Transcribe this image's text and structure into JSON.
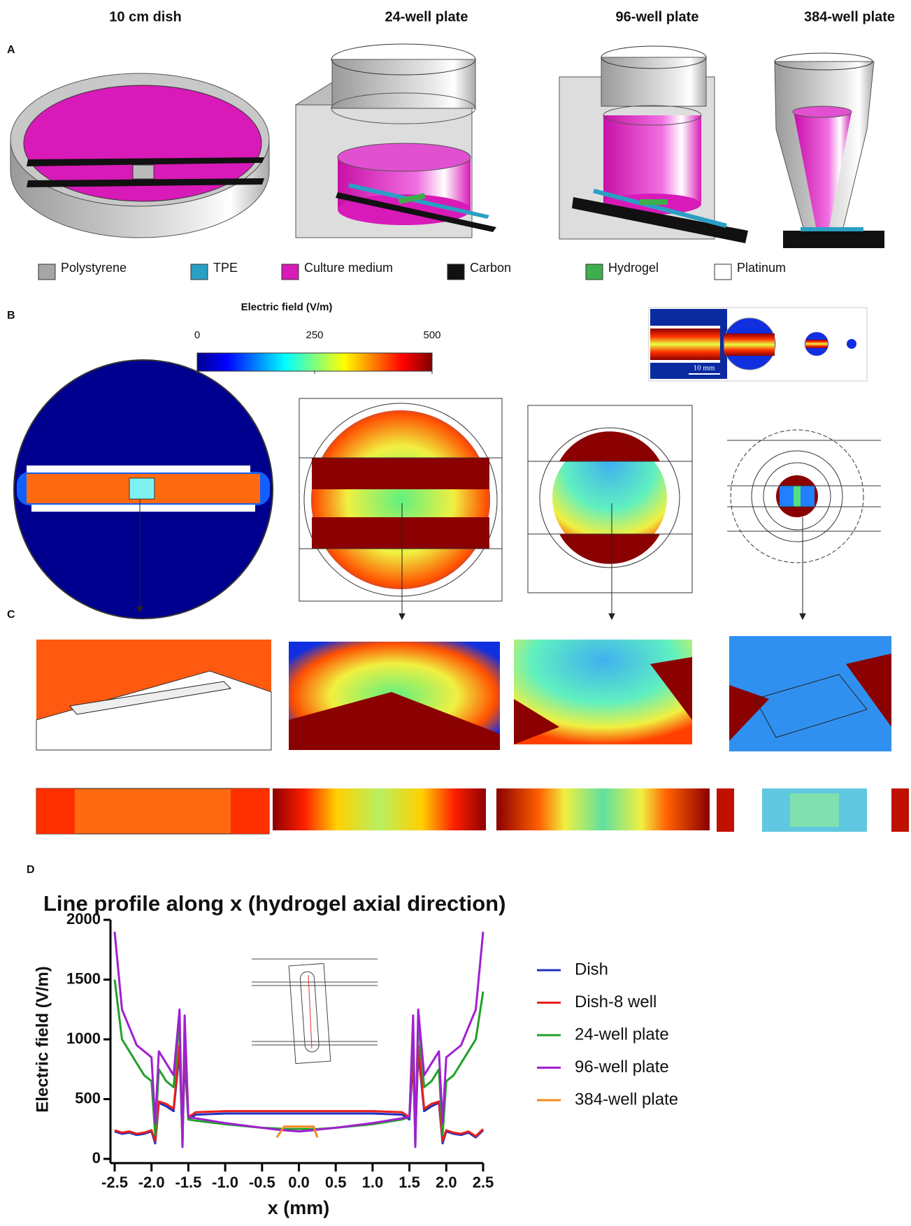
{
  "columns": [
    "10 cm dish",
    "24-well plate",
    "96-well plate",
    "384-well plate"
  ],
  "panel_labels": {
    "A": "A",
    "B": "B",
    "C": "C",
    "D": "D"
  },
  "materials": [
    {
      "name": "Polystyrene",
      "color": "#a6a6a6"
    },
    {
      "name": "TPE",
      "color": "#2a9fc4"
    },
    {
      "name": "Culture medium",
      "color": "#d81ab8"
    },
    {
      "name": "Carbon",
      "color": "#111111"
    },
    {
      "name": "Hydrogel",
      "color": "#3fae4c"
    },
    {
      "name": "Platinum",
      "color": "#ffffff"
    }
  ],
  "colorbar": {
    "label": "Electric field (V/m)",
    "lim": [
      0,
      500
    ],
    "ticks": [
      0,
      250,
      500
    ]
  },
  "inset_scale": "10 mm",
  "chart_data": {
    "type": "line",
    "title": "Line profile along x (hydrogel axial direction)",
    "x_label": "x (mm)",
    "y_label": "Electric field (V/m)",
    "x": [
      -2.5,
      -2.4,
      -2.3,
      -2.2,
      -2.1,
      -2.0,
      -1.95,
      -1.9,
      -1.8,
      -1.7,
      -1.62,
      -1.58,
      -1.55,
      -1.5,
      -1.4,
      -1.0,
      -0.5,
      -0.3,
      -0.2,
      0,
      0.2,
      0.25,
      0.5,
      1.0,
      1.4,
      1.5,
      1.55,
      1.58,
      1.62,
      1.7,
      1.8,
      1.9,
      1.95,
      2.0,
      2.1,
      2.2,
      2.3,
      2.4,
      2.5
    ],
    "series": [
      {
        "name": "Dish",
        "color": "#1f2fc0",
        "values": [
          230,
          210,
          220,
          200,
          210,
          230,
          130,
          470,
          440,
          400,
          900,
          150,
          850,
          330,
          370,
          380,
          380,
          380,
          380,
          380,
          380,
          380,
          380,
          380,
          370,
          330,
          850,
          150,
          900,
          400,
          440,
          470,
          130,
          230,
          210,
          200,
          220,
          180,
          240
        ]
      },
      {
        "name": "Dish-8 well",
        "color": "#e8201c",
        "values": [
          240,
          220,
          230,
          210,
          220,
          240,
          150,
          480,
          460,
          420,
          950,
          170,
          900,
          350,
          390,
          400,
          400,
          400,
          400,
          400,
          400,
          400,
          400,
          400,
          390,
          350,
          900,
          170,
          950,
          420,
          460,
          480,
          150,
          240,
          220,
          210,
          230,
          190,
          250
        ]
      },
      {
        "name": "24-well plate",
        "color": "#22a02a",
        "values": [
          1500,
          1000,
          900,
          800,
          700,
          650,
          200,
          750,
          650,
          600,
          1150,
          100,
          1100,
          330,
          320,
          290,
          260,
          255,
          250,
          250,
          250,
          250,
          260,
          290,
          330,
          350,
          1100,
          100,
          1150,
          600,
          650,
          750,
          200,
          650,
          700,
          800,
          900,
          1000,
          1400
        ]
      },
      {
        "name": "96-well plate",
        "color": "#a020d0",
        "values": [
          1900,
          1250,
          1100,
          950,
          900,
          850,
          300,
          900,
          800,
          700,
          1250,
          100,
          1200,
          350,
          340,
          300,
          260,
          245,
          240,
          230,
          240,
          245,
          260,
          300,
          340,
          350,
          1200,
          100,
          1250,
          700,
          800,
          900,
          300,
          850,
          900,
          950,
          1100,
          1250,
          1900
        ]
      },
      {
        "name": "384-well plate",
        "color": "#f28a1e",
        "values": [
          null,
          null,
          null,
          null,
          null,
          null,
          null,
          null,
          null,
          null,
          null,
          null,
          null,
          null,
          null,
          null,
          null,
          180,
          270,
          270,
          270,
          180,
          null,
          null,
          null,
          null,
          null,
          null,
          null,
          null,
          null,
          null,
          null,
          null,
          null,
          null,
          null,
          null,
          null
        ]
      }
    ],
    "xlim": [
      -2.5,
      2.5
    ],
    "xticks": [
      -2.5,
      {
        "value": -2.0,
        "label": "-2.0"
      },
      -1.5,
      {
        "value": -1.0,
        "label": "-1.0"
      },
      -0.5,
      {
        "value": 0,
        "label": "0.0"
      },
      0.5,
      {
        "value": 1.0,
        "label": "1.0"
      },
      1.5,
      {
        "value": 2.0,
        "label": "2.0"
      },
      2.5
    ],
    "ylim": [
      0,
      2000
    ],
    "yticks": [
      0,
      500,
      1000,
      1500,
      2000
    ]
  }
}
